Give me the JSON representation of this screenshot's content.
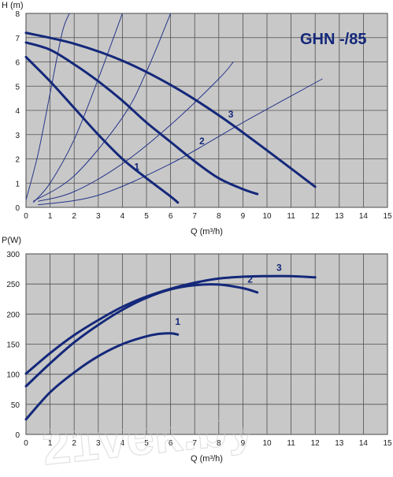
{
  "chart_data": [
    {
      "type": "line",
      "badge": "GHN -/85",
      "xlabel": "Q (m³/h)",
      "ylabel": "H (m)",
      "xlim": [
        0,
        15
      ],
      "ylim": [
        0,
        8
      ],
      "grid": true,
      "x_ticks": [
        "0",
        "1",
        "2",
        "3",
        "4",
        "5",
        "6",
        "7",
        "8",
        "9",
        "10",
        "11",
        "12",
        "13",
        "14",
        "15"
      ],
      "y_ticks": [
        "0",
        "1",
        "2",
        "3",
        "4",
        "5",
        "6",
        "7",
        "8"
      ],
      "series": [
        {
          "name": "1",
          "x": [
            0,
            1,
            2,
            3,
            4,
            5,
            6,
            6.3
          ],
          "y": [
            6.2,
            5.2,
            4.1,
            3.0,
            2.0,
            1.2,
            0.45,
            0.2
          ]
        },
        {
          "name": "2",
          "x": [
            0,
            1,
            2,
            3,
            4,
            5,
            6,
            7,
            8,
            9,
            9.6
          ],
          "y": [
            6.8,
            6.5,
            5.9,
            5.2,
            4.4,
            3.5,
            2.7,
            1.9,
            1.2,
            0.75,
            0.55
          ]
        },
        {
          "name": "3",
          "x": [
            0,
            2,
            4,
            6,
            8,
            10,
            12
          ],
          "y": [
            7.2,
            6.75,
            6.05,
            5.05,
            3.8,
            2.35,
            0.85
          ]
        }
      ],
      "system_curves": [
        {
          "x": [
            0,
            0.5,
            1,
            1.5,
            1.8
          ],
          "y": [
            0.3,
            2.2,
            4.7,
            7.2,
            8
          ]
        },
        {
          "x": [
            0.3,
            1,
            2,
            3,
            4
          ],
          "y": [
            0.2,
            1.0,
            2.8,
            5.3,
            8
          ]
        },
        {
          "x": [
            0.3,
            2,
            4,
            5,
            6
          ],
          "y": [
            0.25,
            1.3,
            3.7,
            5.6,
            8
          ]
        },
        {
          "x": [
            0.5,
            2,
            4,
            6,
            8,
            8.6
          ],
          "y": [
            0.25,
            0.65,
            1.8,
            3.4,
            5.3,
            6.0
          ]
        },
        {
          "x": [
            0.5,
            3,
            6,
            9,
            12.3
          ],
          "y": [
            0.1,
            0.5,
            1.8,
            3.5,
            5.3
          ]
        }
      ],
      "labels": [
        {
          "text": "1",
          "x": 4.6,
          "y": 1.55
        },
        {
          "text": "2",
          "x": 7.3,
          "y": 2.6
        },
        {
          "text": "3",
          "x": 8.5,
          "y": 3.7
        }
      ]
    },
    {
      "type": "line",
      "xlabel": "Q (m³/h)",
      "ylabel": "P(W)",
      "xlim": [
        0,
        15
      ],
      "ylim": [
        0,
        300
      ],
      "grid": true,
      "x_ticks": [
        "0",
        "1",
        "2",
        "3",
        "4",
        "5",
        "6",
        "7",
        "8",
        "9",
        "10",
        "11",
        "12",
        "13",
        "14",
        "15"
      ],
      "y_ticks": [
        "0",
        "50",
        "100",
        "150",
        "200",
        "250",
        "300"
      ],
      "series": [
        {
          "name": "1",
          "x": [
            0,
            1,
            2,
            3,
            4,
            5,
            5.5,
            6,
            6.3
          ],
          "y": [
            25,
            70,
            103,
            130,
            150,
            163,
            167,
            168,
            166
          ]
        },
        {
          "name": "2",
          "x": [
            0,
            1,
            2,
            3,
            4,
            5,
            6,
            7,
            8,
            9,
            9.6
          ],
          "y": [
            80,
            118,
            153,
            182,
            207,
            227,
            241,
            248,
            249,
            243,
            236
          ]
        },
        {
          "name": "3",
          "x": [
            0,
            1,
            2,
            3,
            4,
            5,
            6,
            7,
            8,
            9,
            10,
            11,
            12
          ],
          "y": [
            101,
            135,
            165,
            190,
            212,
            229,
            242,
            252,
            259,
            262,
            263,
            263,
            261
          ]
        }
      ],
      "labels": [
        {
          "text": "1",
          "x": 6.3,
          "y": 182
        },
        {
          "text": "2",
          "x": 9.3,
          "y": 252
        },
        {
          "text": "3",
          "x": 10.5,
          "y": 272
        }
      ]
    }
  ],
  "watermark": "21vek.by"
}
